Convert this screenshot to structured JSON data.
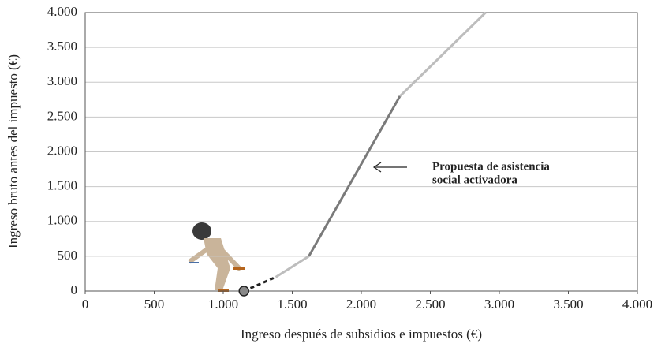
{
  "chart_data": {
    "type": "line",
    "x_label": "Ingreso después de subsidios e impuestos (€)",
    "y_label": "Ingreso bruto antes del impuesto (€)",
    "annotation": [
      "Propuesta de asistencia",
      "social activadora"
    ],
    "xlim": [
      0,
      4000
    ],
    "ylim": [
      0,
      4000
    ],
    "xticks": [
      0,
      500,
      {
        "value": 1000,
        "label": "1.000"
      },
      {
        "value": 1500,
        "label": "1.500"
      },
      {
        "value": 2000,
        "label": "2.000"
      },
      {
        "value": 2500,
        "label": "2.500"
      },
      {
        "value": 3000,
        "label": "3.000"
      },
      {
        "value": 3500,
        "label": "3.500"
      },
      {
        "value": 4000,
        "label": "4.000"
      }
    ],
    "yticks": [
      0,
      500,
      {
        "value": 1000,
        "label": "1.000"
      },
      {
        "value": 1500,
        "label": "1.500"
      },
      {
        "value": 2000,
        "label": "2.000"
      },
      {
        "value": 2500,
        "label": "2.500"
      },
      {
        "value": 3000,
        "label": "3.000"
      },
      {
        "value": 3500,
        "label": "3.500"
      },
      {
        "value": 4000,
        "label": "4.000"
      }
    ],
    "grid": true,
    "series": [
      {
        "color": "#222222",
        "dashed": true,
        "x": [
          1150,
          1380
        ],
        "values": [
          0,
          200
        ]
      },
      {
        "color": "#bdbdbd",
        "dashed": false,
        "x": [
          1380,
          1620
        ],
        "values": [
          200,
          500
        ]
      },
      {
        "color": "#7a7a7a",
        "dashed": false,
        "x": [
          1620,
          2280
        ],
        "values": [
          500,
          2800
        ]
      },
      {
        "color": "#bdbdbd",
        "dashed": false,
        "x": [
          2280,
          2900
        ],
        "values": [
          2800,
          4000
        ]
      }
    ],
    "marker": {
      "x": 1150,
      "y": 0,
      "color": "#888888"
    }
  }
}
